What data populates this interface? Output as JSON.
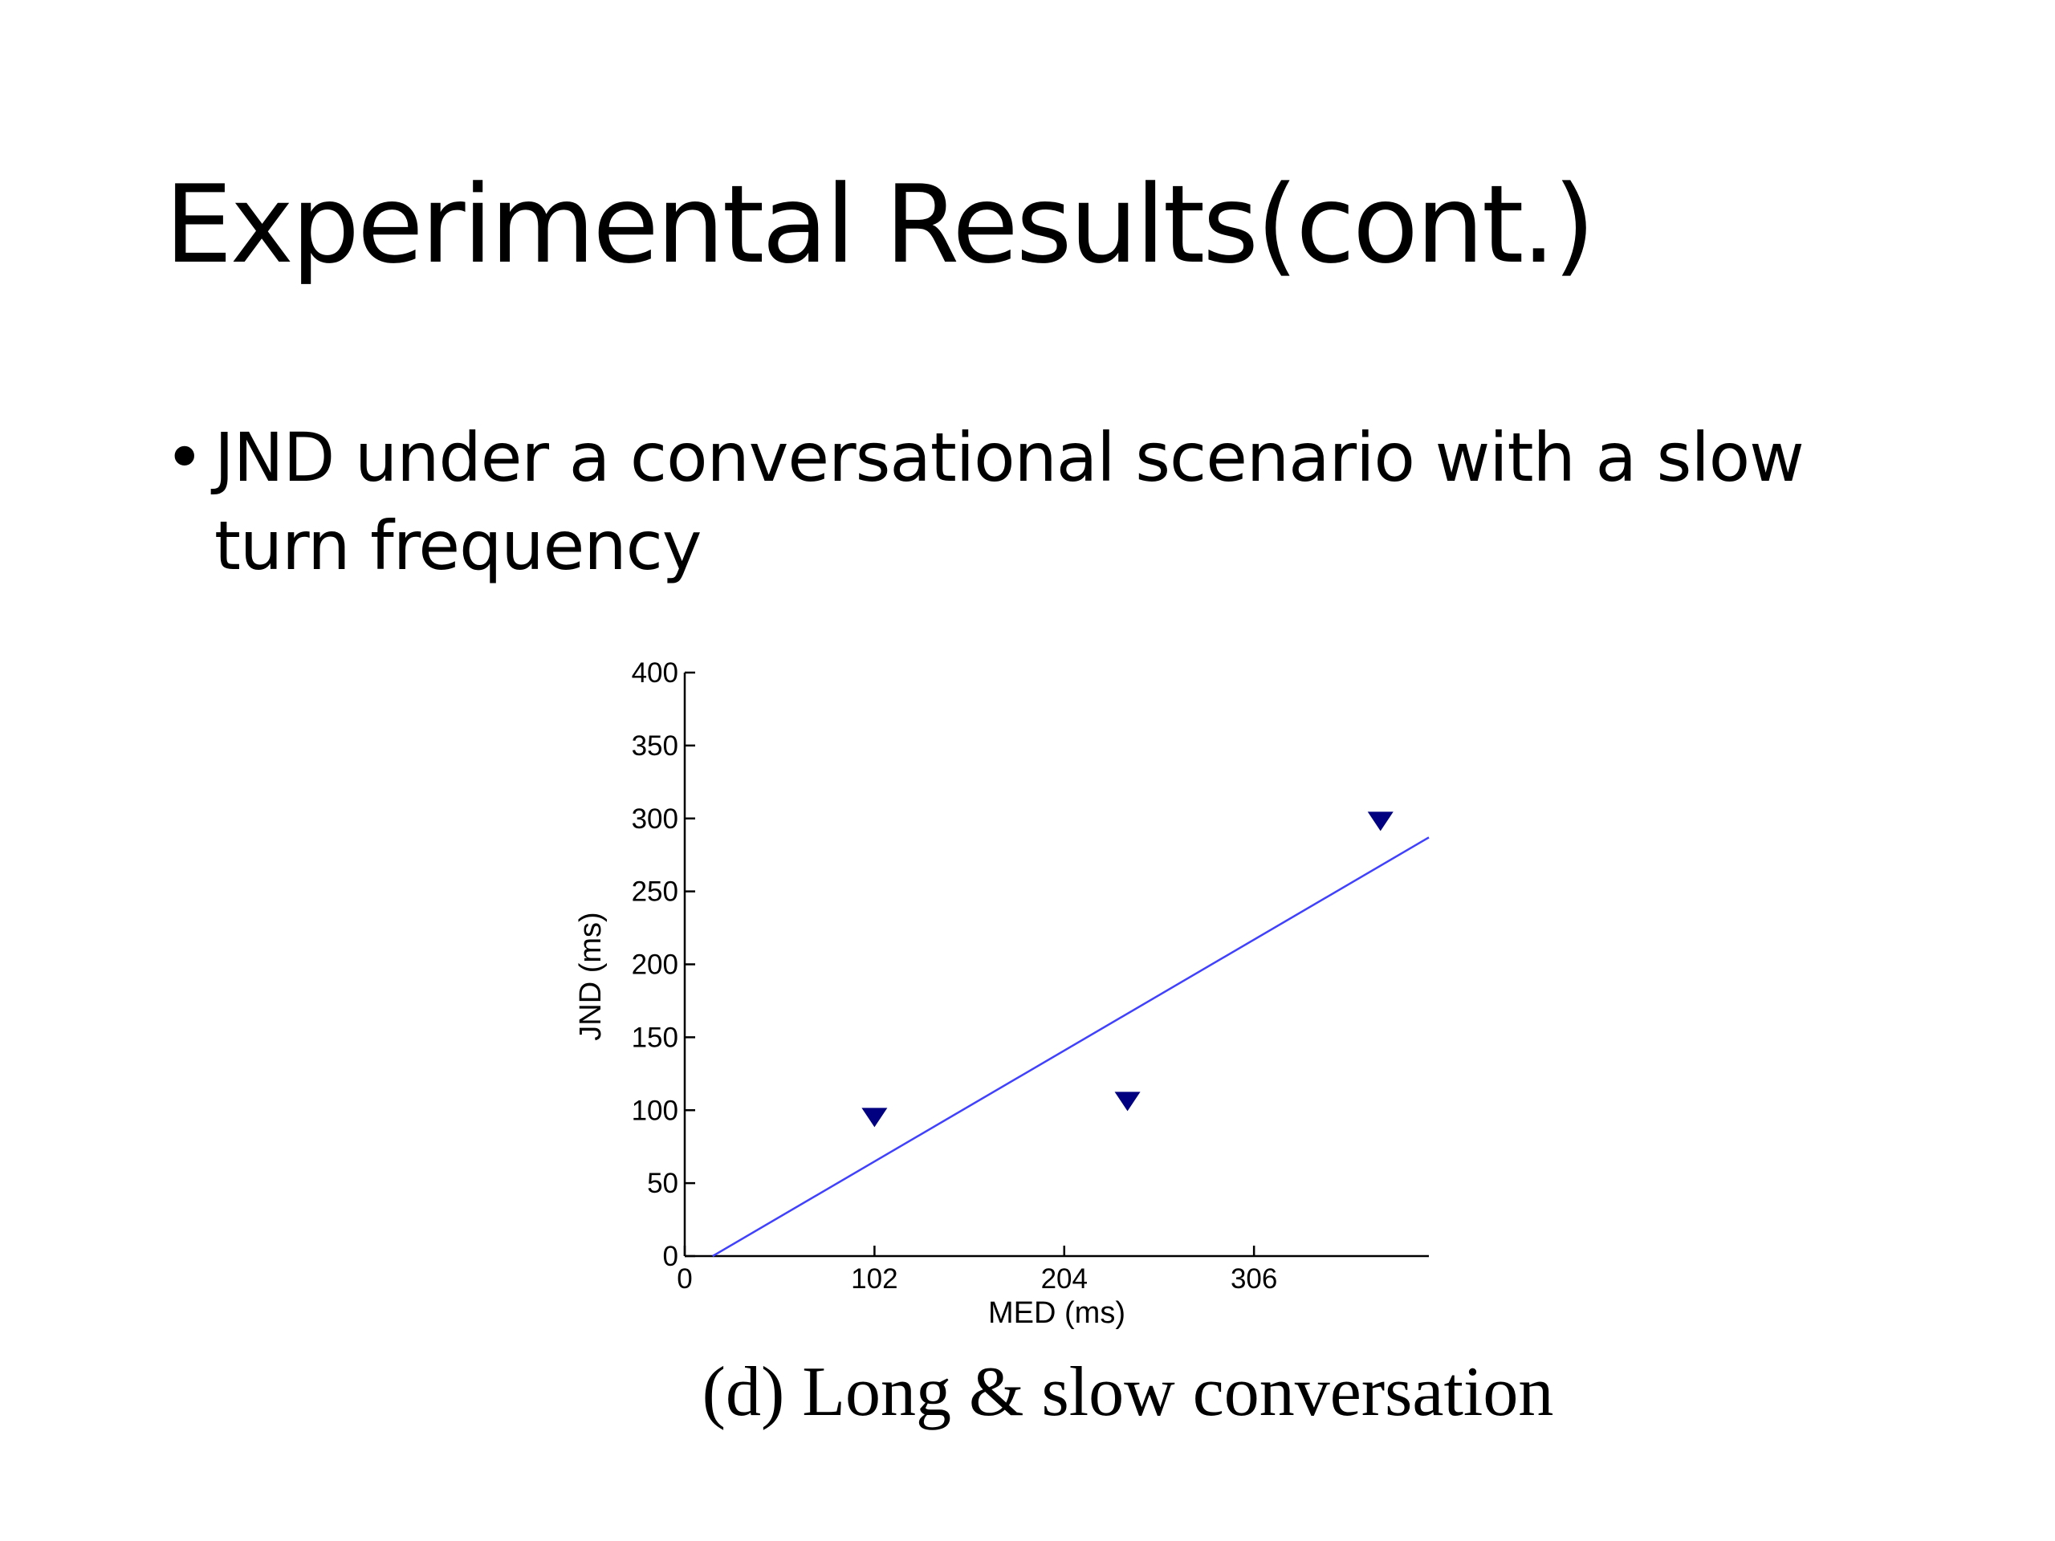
{
  "slide": {
    "title": "Experimental Results(cont.)",
    "bullets": [
      {
        "marker": "•",
        "lines": [
          "JND under a conversational scenario with a slow",
          "turn frequency"
        ]
      }
    ],
    "caption": "(d) Long & slow conversation"
  },
  "chart_data": {
    "type": "scatter",
    "title": "",
    "xlabel": "MED (ms)",
    "ylabel": "JND (ms)",
    "xlim": [
      0,
      400
    ],
    "ylim": [
      0,
      400
    ],
    "xticks": [
      0,
      102,
      204,
      306
    ],
    "yticks": [
      0,
      50,
      100,
      150,
      200,
      250,
      300,
      350,
      400
    ],
    "grid": false,
    "series": [
      {
        "marker": "triangle-down",
        "color": "#000080",
        "points": [
          {
            "x": 102,
            "y": 95
          },
          {
            "x": 238,
            "y": 106
          },
          {
            "x": 374,
            "y": 298
          }
        ]
      }
    ],
    "fit_line": {
      "color": "#4040ff",
      "points": [
        {
          "x": 15,
          "y": 0
        },
        {
          "x": 400,
          "y": 287
        }
      ]
    }
  }
}
